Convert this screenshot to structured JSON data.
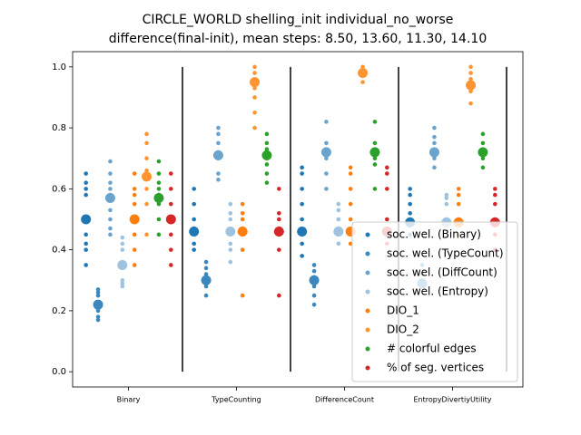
{
  "chart_data": {
    "type": "strip",
    "title": "CIRCLE_WORLD shelling_init individual_no_worse",
    "subtitle": "difference(final-init), mean steps: 8.50, 13.60, 11.30, 14.10",
    "categories": [
      "Binary",
      "TypeCounting",
      "DifferenceCount",
      "EntropyDivertiyUtility"
    ],
    "ylim": [
      -0.05,
      1.05
    ],
    "yticks": [
      {
        "value": 0,
        "label": "0.0"
      },
      0.2,
      0.4,
      0.6,
      0.8,
      {
        "value": 1,
        "label": "1.0"
      }
    ],
    "legend": "lower right",
    "series": [
      {
        "name": "soc. wel. (Binary)",
        "color": "#1f77b4",
        "values": [
          0.5,
          0.46,
          0.46,
          0.49
        ],
        "points": [
          [
            0.65,
            0.62,
            0.6,
            0.58,
            0.5,
            0.45,
            0.42,
            0.4,
            0.35
          ],
          [
            0.6,
            0.55,
            0.5,
            0.47,
            0.46,
            0.42,
            0.4
          ],
          [
            0.67,
            0.65,
            0.6,
            0.55,
            0.5,
            0.46,
            0.42,
            0.38
          ],
          [
            0.6,
            0.58,
            0.55,
            0.52,
            0.5,
            0.48,
            0.45
          ]
        ]
      },
      {
        "name": "soc. wel. (TypeCount)",
        "color": "#3b88be",
        "values": [
          0.22,
          0.3,
          0.3,
          0.29
        ],
        "points": [
          [
            0.27,
            0.26,
            0.25,
            0.22,
            0.2,
            0.18,
            0.17
          ],
          [
            0.36,
            0.34,
            0.32,
            0.3,
            0.28,
            0.25
          ],
          [
            0.35,
            0.33,
            0.31,
            0.3,
            0.28,
            0.25,
            0.22
          ],
          [
            0.35,
            0.32,
            0.3,
            0.28
          ]
        ]
      },
      {
        "name": "soc. wel. (DiffCount)",
        "color": "#6aa3cd",
        "values": [
          0.57,
          0.71,
          0.72,
          0.72
        ],
        "points": [
          [
            0.69,
            0.65,
            0.62,
            0.6,
            0.58,
            0.53,
            0.5,
            0.47,
            0.45
          ],
          [
            0.8,
            0.78,
            0.75,
            0.72,
            0.7,
            0.65,
            0.63
          ],
          [
            0.82,
            0.75,
            0.73,
            0.72,
            0.7,
            0.65,
            0.6
          ],
          [
            0.8,
            0.77,
            0.75,
            0.72,
            0.7,
            0.67
          ]
        ]
      },
      {
        "name": "soc. wel. (Entropy)",
        "color": "#9dc3e0",
        "values": [
          0.35,
          0.46,
          0.46,
          0.49
        ],
        "points": [
          [
            0.44,
            0.42,
            0.4,
            0.36,
            0.35,
            0.3,
            0.29,
            0.28
          ],
          [
            0.55,
            0.52,
            0.5,
            0.46,
            0.42,
            0.4,
            0.36
          ],
          [
            0.55,
            0.53,
            0.5,
            0.47,
            0.45,
            0.42
          ],
          [
            0.58,
            0.57,
            0.55,
            0.5,
            0.48
          ]
        ]
      },
      {
        "name": "DIO_1",
        "color": "#ff7f0e",
        "values": [
          0.5,
          0.46,
          0.46,
          0.49
        ],
        "points": [
          [
            0.65,
            0.6,
            0.58,
            0.55,
            0.5,
            0.45,
            0.4,
            0.35
          ],
          [
            0.55,
            0.52,
            0.5,
            0.47,
            0.45,
            0.4,
            0.25
          ],
          [
            0.67,
            0.65,
            0.6,
            0.55,
            0.5,
            0.46,
            0.42
          ],
          [
            0.6,
            0.58,
            0.55,
            0.5,
            0.45
          ]
        ]
      },
      {
        "name": "DIO_2",
        "color": "#ff9430",
        "values": [
          0.64,
          0.95,
          0.98,
          0.94
        ],
        "points": [
          [
            0.78,
            0.75,
            0.7,
            0.66,
            0.64,
            0.6,
            0.55,
            0.45
          ],
          [
            1.0,
            0.98,
            0.95,
            0.93,
            0.9,
            0.85,
            0.8
          ],
          [
            1.0,
            0.99,
            0.98,
            0.97,
            0.95
          ],
          [
            1.0,
            0.98,
            0.96,
            0.94,
            0.92,
            0.88
          ]
        ]
      },
      {
        "name": "# colorful edges",
        "color": "#2ca02c",
        "values": [
          0.57,
          0.71,
          0.72,
          0.72
        ],
        "points": [
          [
            0.69,
            0.65,
            0.62,
            0.6,
            0.58,
            0.55,
            0.5,
            0.45
          ],
          [
            0.78,
            0.75,
            0.73,
            0.7,
            0.68,
            0.65,
            0.62
          ],
          [
            0.82,
            0.75,
            0.73,
            0.7,
            0.68,
            0.6
          ],
          [
            0.78,
            0.75,
            0.73,
            0.72,
            0.7,
            0.67
          ]
        ]
      },
      {
        "name": "% of seg. vertices",
        "color": "#d62728",
        "values": [
          0.5,
          0.46,
          0.46,
          0.49
        ],
        "points": [
          [
            0.65,
            0.6,
            0.55,
            0.5,
            0.45,
            0.4,
            0.35
          ],
          [
            0.6,
            0.52,
            0.5,
            0.47,
            0.45,
            0.4,
            0.25
          ],
          [
            0.67,
            0.65,
            0.6,
            0.5,
            0.46,
            0.42
          ],
          [
            0.6,
            0.58,
            0.55,
            0.5,
            0.45,
            0.4
          ]
        ]
      }
    ]
  }
}
